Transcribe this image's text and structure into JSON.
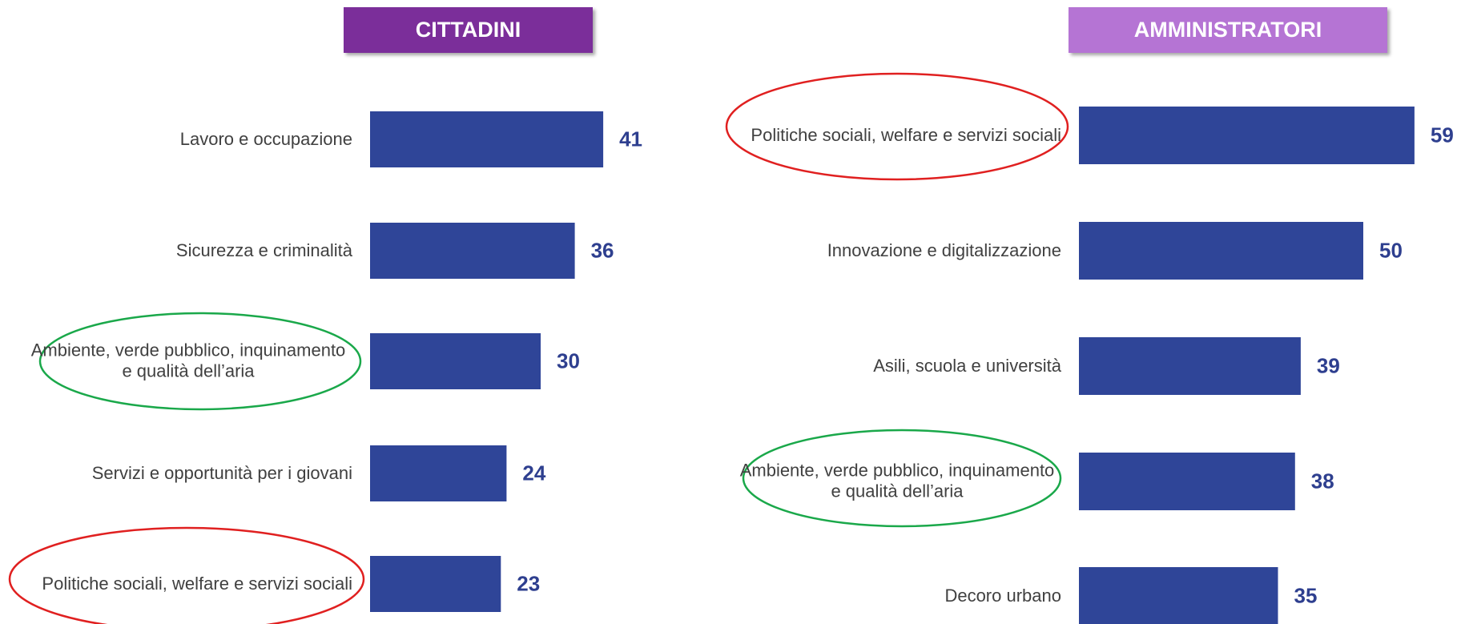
{
  "chart_data": [
    {
      "type": "bar",
      "orientation": "horizontal",
      "title": "CITTADINI",
      "title_color": "#7b2e9a",
      "color": "#2f4598",
      "categories": [
        "Lavoro e occupazione",
        "Sicurezza e criminalità",
        "Ambiente, verde pubblico, inquinamento e qualità dell’aria",
        "Servizi e opportunità per i giovani",
        "Politiche sociali, welfare e servizi sociali"
      ],
      "values": [
        41,
        36,
        30,
        24,
        23
      ]
    },
    {
      "type": "bar",
      "orientation": "horizontal",
      "title": "AMMINISTRATORI",
      "title_color": "#b574d4",
      "color": "#2f4598",
      "categories": [
        "Politiche sociali, welfare e servizi sociali",
        "Innovazione e digitalizzazione",
        "Asili, scuola e università",
        "Ambiente, verde pubblico, inquinamento e qualità dell’aria",
        "Decoro urbano"
      ],
      "values": [
        59,
        50,
        39,
        38,
        35
      ]
    }
  ]
}
